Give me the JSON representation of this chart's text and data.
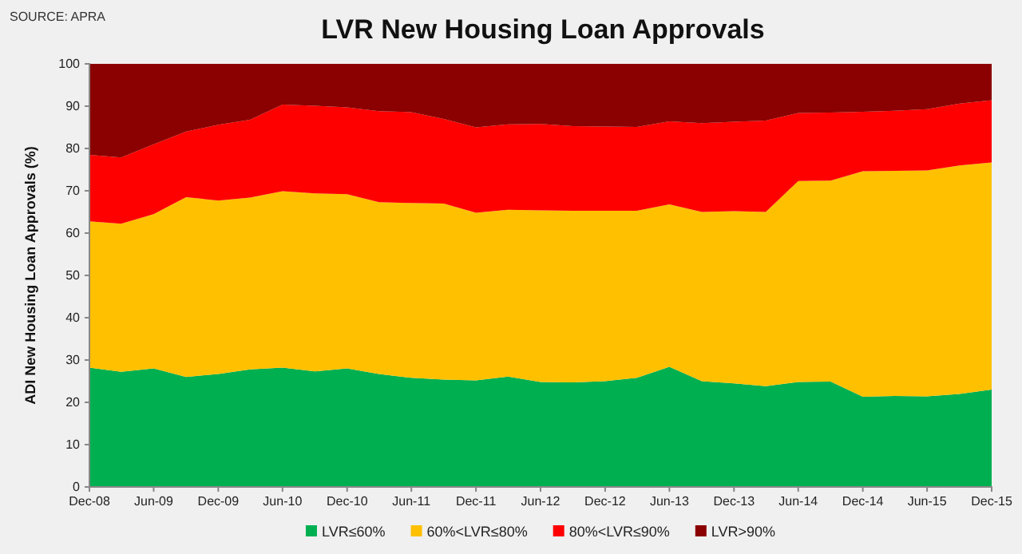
{
  "chart_data": {
    "type": "area",
    "stacked": true,
    "title": "LVR New Housing Loan Approvals",
    "ylabel": "ADI New Housing Loan Approvals (%)",
    "annotations": [
      "SOURCE: APRA"
    ],
    "x": [
      "2008-12",
      "2009-03",
      "2009-06",
      "2009-09",
      "2009-12",
      "2010-03",
      "2010-06",
      "2010-09",
      "2010-12",
      "2011-03",
      "2011-06",
      "2011-09",
      "2011-12",
      "2012-03",
      "2012-06",
      "2012-09",
      "2012-12",
      "2013-03",
      "2013-06",
      "2013-09",
      "2013-12",
      "2014-03",
      "2014-06",
      "2014-09",
      "2014-12",
      "2015-03",
      "2015-06",
      "2015-09",
      "2015-12"
    ],
    "series": [
      {
        "name": "LVR≤60%",
        "color": "#00b050",
        "values": [
          28.2,
          27.2,
          28.0,
          26.0,
          26.7,
          27.8,
          28.2,
          27.3,
          28.0,
          26.7,
          25.8,
          25.4,
          25.2,
          26.1,
          24.8,
          24.7,
          25.0,
          25.8,
          28.4,
          25.0,
          24.5,
          23.8,
          24.8,
          24.9,
          21.3,
          21.5,
          21.4,
          22.0,
          23.0
        ]
      },
      {
        "name": "60%<LVR≤80%",
        "color": "#ffc000",
        "values": [
          34.6,
          35.0,
          36.5,
          42.5,
          41.0,
          40.6,
          41.7,
          42.1,
          41.2,
          40.6,
          41.3,
          41.6,
          39.6,
          39.4,
          40.6,
          40.6,
          40.3,
          39.5,
          38.4,
          40.0,
          40.7,
          41.2,
          47.5,
          47.5,
          53.3,
          53.2,
          53.4,
          54.0,
          53.7
        ]
      },
      {
        "name": "80%<LVR≤90%",
        "color": "#ff0000",
        "values": [
          15.7,
          15.7,
          16.5,
          15.5,
          17.9,
          18.4,
          20.5,
          20.7,
          20.5,
          21.5,
          21.5,
          20.0,
          20.2,
          20.2,
          20.4,
          20.0,
          19.9,
          19.8,
          19.6,
          21.0,
          21.1,
          21.6,
          16.1,
          16.1,
          14.1,
          14.2,
          14.5,
          14.6,
          14.7
        ]
      },
      {
        "name": "LVR>90%",
        "color": "#8b0000",
        "values": [
          21.5,
          22.1,
          19.0,
          16.0,
          14.4,
          13.2,
          9.6,
          9.9,
          10.3,
          11.2,
          11.4,
          13.0,
          15.0,
          14.3,
          14.2,
          14.7,
          14.8,
          14.9,
          13.6,
          14.0,
          13.7,
          13.4,
          11.6,
          11.5,
          11.3,
          11.1,
          10.7,
          9.4,
          8.6
        ]
      }
    ],
    "xlim": [
      "2008-12",
      "2015-12"
    ],
    "xticks": [
      {
        "value": "2008-12",
        "label": "Dec-08"
      },
      {
        "value": "2009-06",
        "label": "Jun-09"
      },
      {
        "value": "2009-12",
        "label": "Dec-09"
      },
      {
        "value": "2010-06",
        "label": "Jun-10"
      },
      {
        "value": "2010-12",
        "label": "Dec-10"
      },
      {
        "value": "2011-06",
        "label": "Jun-11"
      },
      {
        "value": "2011-12",
        "label": "Dec-11"
      },
      {
        "value": "2012-06",
        "label": "Jun-12"
      },
      {
        "value": "2012-12",
        "label": "Dec-12"
      },
      {
        "value": "2013-06",
        "label": "Jun-13"
      },
      {
        "value": "2013-12",
        "label": "Dec-13"
      },
      {
        "value": "2014-06",
        "label": "Jun-14"
      },
      {
        "value": "2014-12",
        "label": "Dec-14"
      },
      {
        "value": "2015-06",
        "label": "Jun-15"
      },
      {
        "value": "2015-12",
        "label": "Dec-15"
      }
    ],
    "ylim": [
      0,
      100
    ],
    "yticks": [
      0,
      10,
      20,
      30,
      40,
      50,
      60,
      70,
      80,
      90,
      100
    ],
    "legend": "bottom"
  }
}
